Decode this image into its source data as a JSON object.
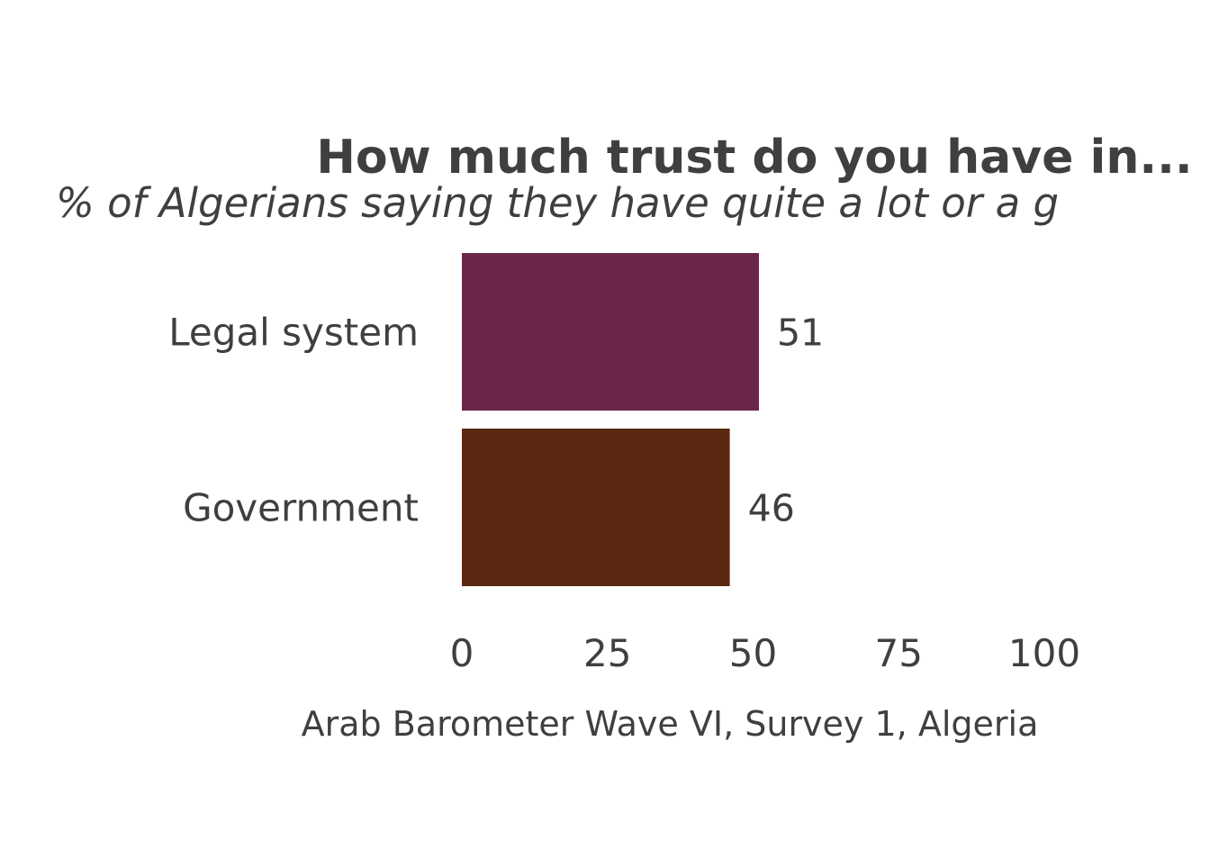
{
  "chart_data": {
    "type": "bar",
    "orientation": "horizontal",
    "title": "How much trust do you have in...",
    "subtitle": "% of Algerians saying they have quite a lot or a g",
    "categories": [
      "Legal system",
      "Government"
    ],
    "values": [
      51,
      46
    ],
    "value_labels": [
      "51",
      "46"
    ],
    "colors": [
      "#6a264a",
      "#5b2911"
    ],
    "xlim": [
      0,
      100
    ],
    "xticks": [
      0,
      25,
      50,
      75,
      100
    ],
    "xtick_labels": [
      "0",
      "25",
      "50",
      "75",
      "100"
    ],
    "xlabel": "",
    "ylabel": "",
    "caption": "Arab Barometer Wave VI, Survey 1, Algeria",
    "grid": false,
    "legend": "none"
  }
}
